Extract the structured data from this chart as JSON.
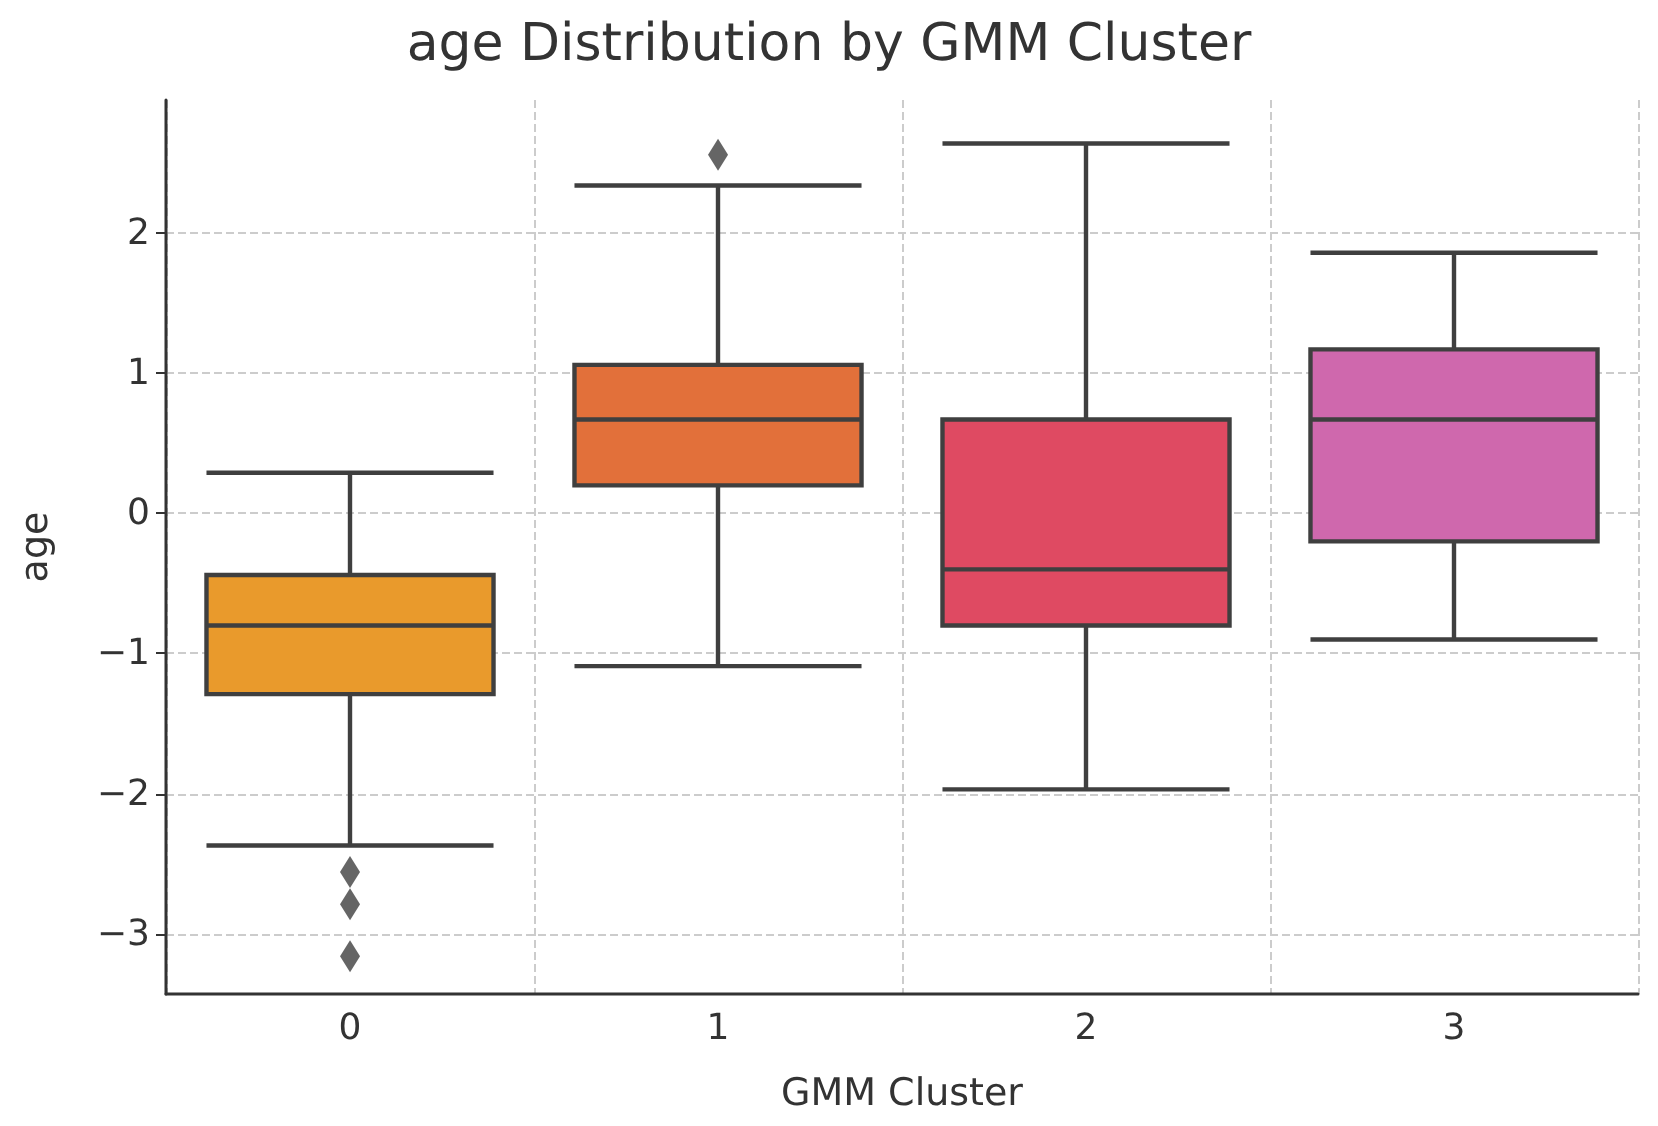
{
  "chart_data": {
    "type": "box",
    "title": "age Distribution by GMM Cluster",
    "xlabel": "GMM Cluster",
    "ylabel": "age",
    "categories": [
      "0",
      "1",
      "2",
      "3"
    ],
    "colors": [
      "#e99a2c",
      "#e2703a",
      "#df4a62",
      "#cf68ad"
    ],
    "boxes": [
      {
        "low": -2.37,
        "q1": -1.29,
        "median": -0.8,
        "q3": -0.44,
        "high": 0.29,
        "outliers": [
          -2.56,
          -2.79,
          -3.16
        ]
      },
      {
        "low": -1.09,
        "q1": 0.2,
        "median": 0.67,
        "q3": 1.06,
        "high": 2.34,
        "outliers": [
          2.56
        ]
      },
      {
        "low": -1.97,
        "q1": -0.8,
        "median": -0.4,
        "q3": 0.67,
        "high": 2.64
      },
      {
        "low": -0.9,
        "q1": -0.2,
        "median": 0.67,
        "q3": 1.17,
        "high": 1.86
      }
    ],
    "ylim": [
      -3.43,
      2.95
    ],
    "yticks": [
      -3,
      -2,
      -1,
      0,
      1,
      2
    ],
    "grid": true,
    "marker": "diamond"
  }
}
